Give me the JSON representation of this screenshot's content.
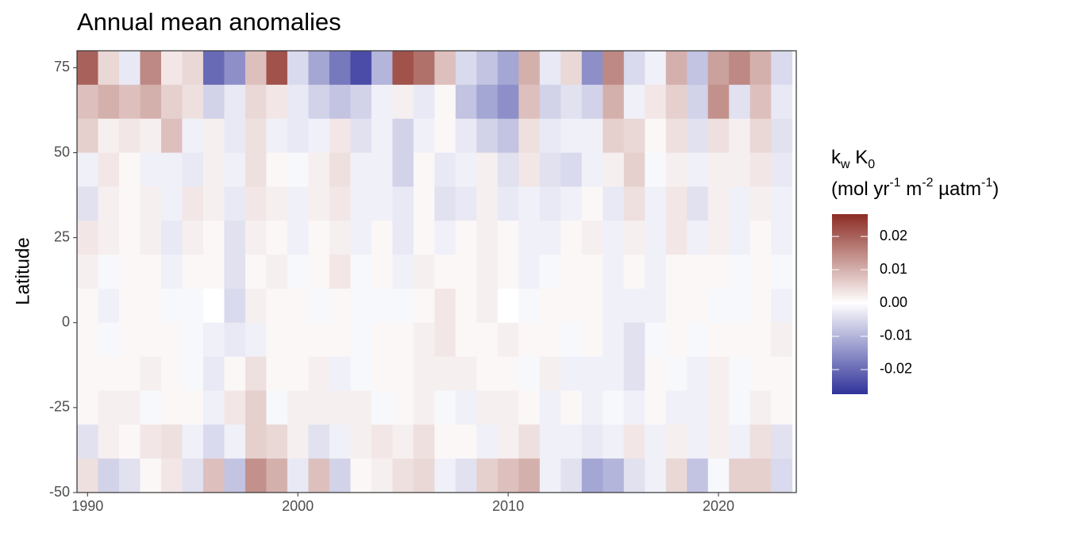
{
  "chart_data": {
    "type": "heatmap",
    "title": "Annual mean anomalies",
    "y_label": "Latitude",
    "legend_title": {
      "line1": [
        "k",
        "w",
        " K",
        "0"
      ],
      "line2": [
        "(mol yr",
        "-1",
        " m",
        "-2",
        " µatm",
        "-1",
        ")"
      ]
    },
    "x": [
      1990,
      1991,
      1992,
      1993,
      1994,
      1995,
      1996,
      1997,
      1998,
      1999,
      2000,
      2001,
      2002,
      2003,
      2004,
      2005,
      2006,
      2007,
      2008,
      2009,
      2010,
      2011,
      2012,
      2013,
      2014,
      2015,
      2016,
      2017,
      2018,
      2019,
      2020,
      2021,
      2022,
      2023
    ],
    "ybins": [
      80,
      70,
      60,
      50,
      40,
      30,
      20,
      10,
      0,
      -10,
      -20,
      -30,
      -40,
      -50
    ],
    "values": [
      [
        0.02,
        0.005,
        -0.003,
        0.015,
        0.003,
        0.005,
        -0.02,
        -0.015,
        0.008,
        0.022,
        -0.005,
        -0.012,
        -0.018,
        -0.024,
        -0.01,
        0.022,
        0.018,
        0.008,
        -0.005,
        -0.008,
        -0.012,
        0.01,
        -0.003,
        0.005,
        -0.015,
        0.015,
        -0.005,
        -0.002,
        0.01,
        -0.008,
        0.012,
        0.015,
        0.01,
        -0.005
      ],
      [
        0.008,
        0.01,
        0.008,
        0.01,
        0.006,
        0.004,
        -0.006,
        -0.003,
        0.005,
        0.003,
        -0.003,
        -0.006,
        -0.008,
        -0.006,
        -0.002,
        0.002,
        -0.003,
        0.001,
        -0.008,
        -0.012,
        -0.015,
        0.008,
        -0.006,
        -0.004,
        -0.006,
        0.01,
        -0.002,
        0.003,
        0.006,
        -0.006,
        0.014,
        -0.004,
        0.008,
        -0.003
      ],
      [
        0.006,
        0.002,
        0.003,
        0.002,
        0.008,
        -0.002,
        0.002,
        -0.003,
        0.004,
        -0.002,
        -0.003,
        -0.002,
        0.003,
        -0.004,
        -0.002,
        -0.006,
        -0.002,
        0.001,
        -0.003,
        -0.006,
        -0.008,
        0.004,
        -0.003,
        -0.002,
        -0.002,
        0.006,
        0.005,
        0.001,
        0.004,
        -0.004,
        0.004,
        0.002,
        0.005,
        -0.004
      ],
      [
        -0.002,
        0.003,
        0.001,
        -0.002,
        -0.002,
        -0.003,
        0.002,
        -0.002,
        0.004,
        0.001,
        -0.001,
        0.002,
        0.004,
        -0.002,
        -0.002,
        -0.006,
        0.001,
        -0.003,
        -0.002,
        0.002,
        -0.004,
        0.003,
        -0.004,
        -0.005,
        -0.002,
        0.002,
        0.006,
        -0.001,
        0.002,
        -0.002,
        0.002,
        0.002,
        0.003,
        -0.003
      ],
      [
        -0.004,
        0.002,
        0.001,
        0.002,
        -0.002,
        0.003,
        0.002,
        -0.003,
        0.003,
        0.002,
        -0.002,
        0.002,
        0.003,
        -0.002,
        -0.002,
        -0.003,
        0.001,
        -0.004,
        -0.003,
        0.002,
        -0.003,
        -0.002,
        -0.003,
        -0.002,
        0.001,
        -0.003,
        0.004,
        -0.002,
        0.003,
        -0.004,
        0.002,
        -0.002,
        0.002,
        -0.002
      ],
      [
        0.003,
        0.002,
        0.001,
        0.002,
        -0.003,
        0.002,
        0.001,
        -0.004,
        0.002,
        0.001,
        -0.002,
        0.001,
        0.002,
        -0.002,
        0.001,
        -0.003,
        0.001,
        -0.002,
        0.001,
        0.002,
        0.001,
        -0.002,
        -0.002,
        0.001,
        0.002,
        -0.002,
        0.002,
        -0.002,
        0.003,
        -0.002,
        0.002,
        -0.002,
        0.001,
        -0.002
      ],
      [
        0.002,
        -0.001,
        0.001,
        0.001,
        -0.002,
        0.001,
        0.001,
        -0.004,
        0.001,
        0.002,
        -0.001,
        0.001,
        0.003,
        -0.001,
        0.001,
        -0.002,
        0.002,
        0.001,
        0.001,
        0.002,
        0.001,
        -0.002,
        -0.001,
        0.001,
        0.001,
        -0.002,
        0.001,
        -0.002,
        0.001,
        0.001,
        0.001,
        -0.001,
        0.001,
        -0.001
      ],
      [
        0.001,
        -0.002,
        0.001,
        0.001,
        -0.001,
        -0.001,
        0,
        -0.005,
        0.002,
        0.001,
        0.001,
        -0.001,
        0.001,
        -0.001,
        -0.001,
        -0.001,
        0.001,
        0.003,
        0.001,
        0.002,
        0,
        -0.001,
        0.001,
        0.001,
        0.001,
        -0.002,
        -0.002,
        -0.002,
        0.001,
        0.001,
        -0.001,
        -0.001,
        0.001,
        -0.002
      ],
      [
        0.001,
        -0.001,
        0.001,
        0.001,
        0.001,
        -0.001,
        -0.002,
        -0.003,
        -0.002,
        0.001,
        0.001,
        0.001,
        0.001,
        -0.001,
        0.001,
        0.001,
        0.002,
        0.003,
        0.001,
        0.001,
        0.002,
        0.001,
        0.001,
        -0.001,
        0.001,
        -0.002,
        -0.004,
        -0.001,
        0.001,
        -0.001,
        0.001,
        0.001,
        0.001,
        0.002
      ],
      [
        0.001,
        0.001,
        0.001,
        0.002,
        0.001,
        -0.001,
        -0.003,
        0.001,
        0.004,
        0.001,
        0.001,
        0.002,
        -0.002,
        -0.001,
        0.001,
        0.001,
        0.002,
        0.002,
        0.002,
        0.001,
        0.001,
        -0.001,
        0.002,
        -0.002,
        -0.002,
        -0.002,
        -0.004,
        0.001,
        -0.001,
        -0.002,
        0.002,
        -0.001,
        0.001,
        0.001
      ],
      [
        0.001,
        0.002,
        0.002,
        -0.001,
        0.001,
        0.001,
        -0.002,
        0.003,
        0.006,
        -0.001,
        0.002,
        0.002,
        0.002,
        0.002,
        -0.001,
        0.001,
        0.002,
        -0.001,
        -0.002,
        0.002,
        0.002,
        0.001,
        -0.002,
        0.001,
        -0.002,
        -0.001,
        -0.002,
        0.001,
        -0.002,
        -0.002,
        0.002,
        -0.001,
        0.002,
        0.001
      ],
      [
        -0.004,
        0.002,
        0.001,
        0.003,
        0.004,
        -0.002,
        -0.005,
        -0.002,
        0.006,
        0.005,
        0.002,
        -0.004,
        -0.002,
        0.002,
        0.003,
        0.002,
        0.004,
        0.001,
        0.001,
        -0.002,
        0.002,
        0.004,
        -0.002,
        -0.002,
        -0.003,
        -0.002,
        0.003,
        -0.002,
        0.002,
        -0.002,
        0.002,
        -0.002,
        0.004,
        -0.004
      ],
      [
        0.004,
        -0.006,
        -0.004,
        0.001,
        0.003,
        -0.004,
        0.008,
        -0.008,
        0.014,
        0.01,
        -0.003,
        0.008,
        -0.006,
        0.001,
        0.002,
        0.004,
        0.005,
        -0.002,
        -0.004,
        0.006,
        0.008,
        0.01,
        -0.002,
        -0.004,
        -0.012,
        -0.01,
        -0.004,
        -0.002,
        0.005,
        -0.008,
        -0.001,
        0.006,
        0.006,
        -0.005
      ]
    ],
    "xlim": [
      1989.5,
      2023.7
    ],
    "xticks": [
      1990,
      2000,
      2010,
      2020
    ],
    "ylim": [
      -50,
      80
    ],
    "yticks": [
      -50,
      -25,
      0,
      25,
      50,
      75
    ],
    "palette": [
      "#30339a",
      "#ffffff",
      "#8c2d24"
    ],
    "colorlim": [
      -0.0274,
      0.0267
    ],
    "colorticks": [
      -0.02,
      -0.01,
      {
        "value": 0,
        "label": "0.00"
      },
      0.01,
      0.02
    ]
  }
}
